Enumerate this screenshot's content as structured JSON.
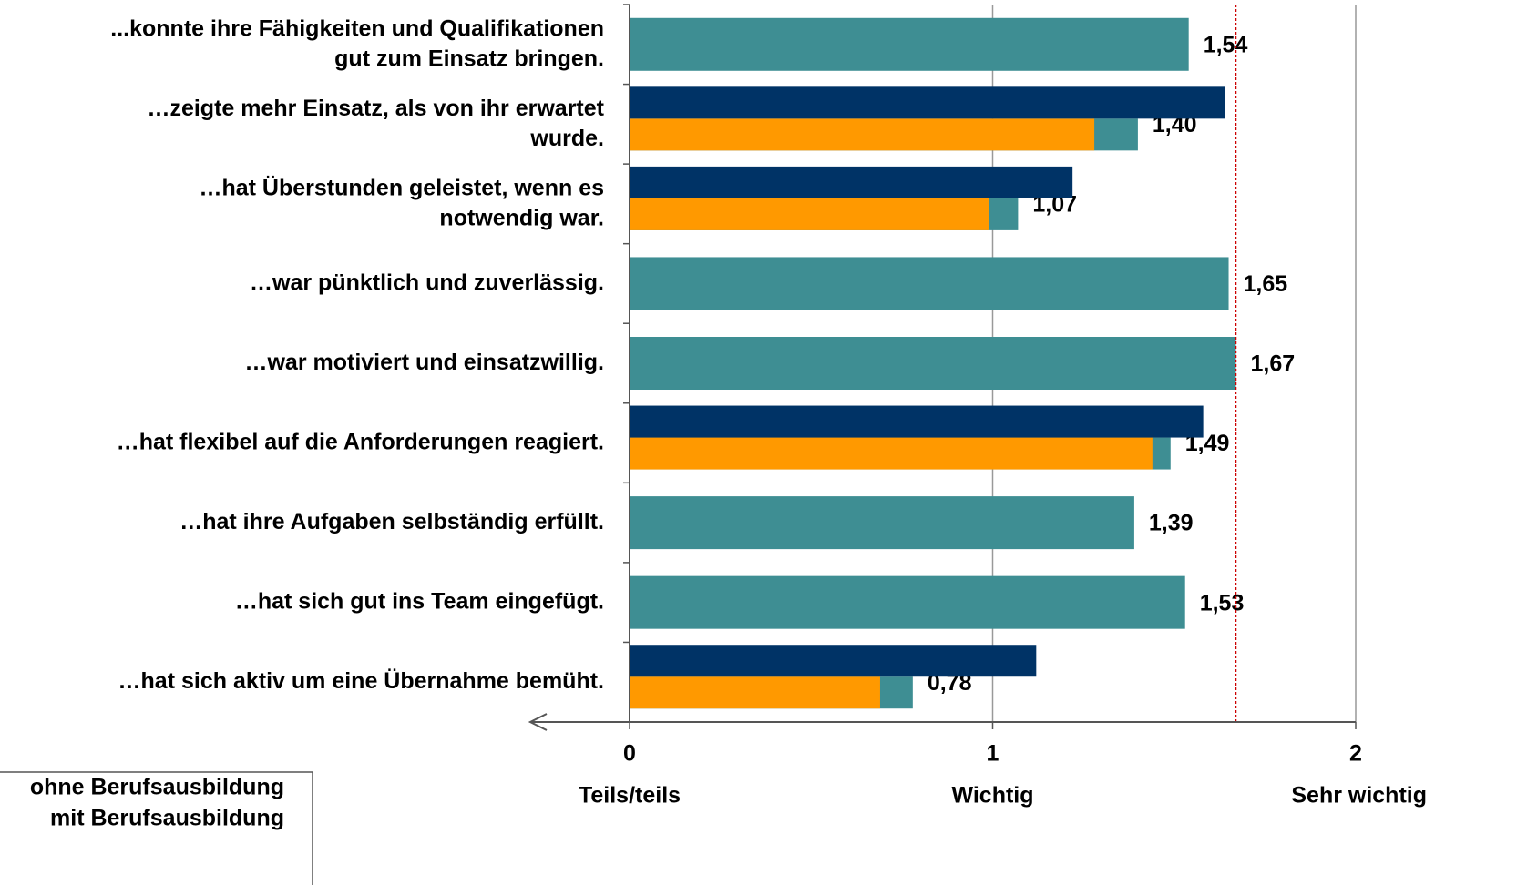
{
  "chart_data": {
    "type": "bar",
    "orientation": "horizontal",
    "categories": [
      "...konnte ihre Fähigkeiten und Qualifikationen\ngut zum Einsatz bringen.",
      "…zeigte mehr Einsatz, als von ihr erwartet\nwurde.",
      "…hat Überstunden geleistet, wenn es\nnotwendig war.",
      "…war pünktlich und zuverlässig.",
      "…war motiviert und einsatzwillig.",
      "…hat flexibel auf die Anforderungen reagiert.",
      "…hat ihre Aufgaben selbständig erfüllt.",
      "…hat sich gut ins Team eingefügt.",
      "…hat sich aktiv um eine Übernahme bemüht."
    ],
    "series": [
      {
        "color": "#3e8e93",
        "values": [
          1.54,
          1.4,
          1.07,
          1.65,
          1.67,
          1.49,
          1.39,
          1.53,
          0.78
        ],
        "value_labels": [
          "1,54",
          "1,40",
          "1,07",
          "1,65",
          "1,67",
          "1,49",
          "1,39",
          "1,53",
          "0,78"
        ]
      },
      {
        "name": "ohne Berufsausbildung",
        "color": "#003366",
        "values": [
          null,
          1.64,
          1.22,
          null,
          null,
          1.58,
          null,
          null,
          1.12
        ]
      },
      {
        "name": "mit Berufsausbildung",
        "color": "#ff9900",
        "values": [
          null,
          1.28,
          0.99,
          null,
          null,
          1.44,
          null,
          null,
          0.69
        ]
      }
    ],
    "xlim": [
      0,
      2
    ],
    "xticks": [
      0,
      1,
      2
    ],
    "xtick_descriptions": [
      "Teils/teils",
      "Wichtig",
      "Sehr wichtig"
    ],
    "reference_line": 1.67,
    "reference_color": "#cc0000",
    "grid": true
  }
}
